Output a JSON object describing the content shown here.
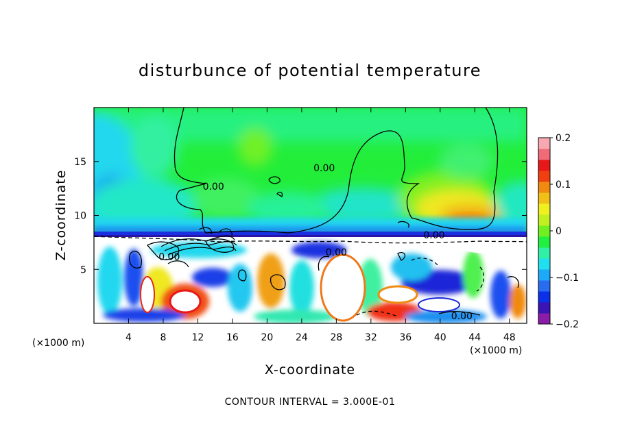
{
  "chart_data": {
    "type": "heatmap",
    "title": "disturbunce of potential temperature",
    "xlabel": "X-coordinate",
    "ylabel": "Z-coordinate",
    "x_unit": "(×1000 m)",
    "xlim": [
      0,
      50
    ],
    "ylim": [
      0,
      20
    ],
    "x_ticks": [
      4,
      8,
      12,
      16,
      20,
      24,
      28,
      32,
      36,
      40,
      44,
      48
    ],
    "y_ticks": [
      5,
      10,
      15
    ],
    "colorbar": {
      "range": [
        -0.2,
        0.2
      ],
      "ticks": [
        {
          "value": 0.2,
          "label": "0.2"
        },
        {
          "value": 0.1,
          "label": "0.1"
        },
        {
          "value": 0.0,
          "label": "0"
        },
        {
          "value": -0.1,
          "label": "-0.1"
        },
        {
          "value": -0.2,
          "label": "-0.2"
        }
      ],
      "colors": [
        "#8a1ca8",
        "#3a14b4",
        "#0a30e8",
        "#2a6cf0",
        "#1ea8f8",
        "#20e0f0",
        "#30f0a8",
        "#20f040",
        "#70f020",
        "#c0f020",
        "#f0f020",
        "#f0c018",
        "#f08a10",
        "#f04010",
        "#e81818",
        "#f06a78",
        "#f8a8b0"
      ]
    },
    "contour_labels": [
      {
        "x": 13.8,
        "z": 12.7,
        "text": "0.00"
      },
      {
        "x": 26.6,
        "z": 14.4,
        "text": "0.00"
      },
      {
        "x": 39.3,
        "z": 8.2,
        "text": "0.00"
      },
      {
        "x": 28.0,
        "z": 6.6,
        "text": "0.00"
      },
      {
        "x": 8.7,
        "z": 6.2,
        "text": "0.00"
      },
      {
        "x": 42.5,
        "z": 0.7,
        "text": "0.00"
      }
    ],
    "contour_interval": "CONTOUR INTERVAL = 3.000E-01"
  }
}
